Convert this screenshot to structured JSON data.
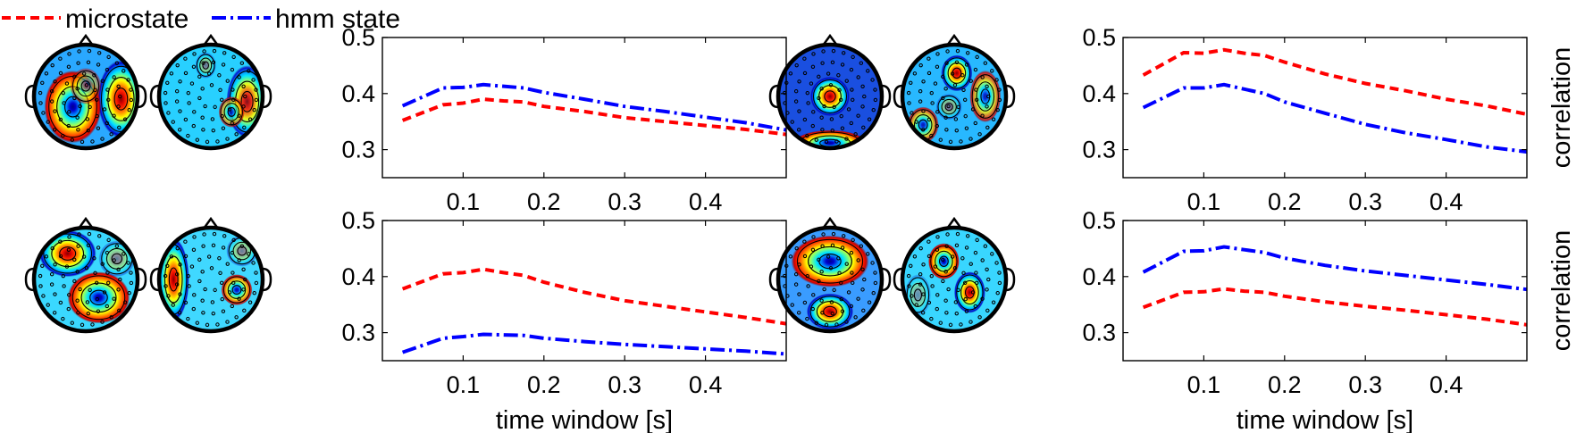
{
  "legend": {
    "entries": [
      {
        "label": "microstate",
        "color": "#ff0000",
        "dash": "10,6"
      },
      {
        "label": "hmm state",
        "color": "#0000ff",
        "dash": "16,5,3,5"
      }
    ]
  },
  "chart_data": [
    {
      "type": "line",
      "title": "",
      "xlabel": "",
      "ylabel": "",
      "xlim": [
        0.0,
        0.5
      ],
      "ylim": [
        0.25,
        0.5
      ],
      "xticks": [
        "0.1",
        "0.2",
        "0.3",
        "0.4"
      ],
      "yticks": [
        "0.3",
        "0.4",
        "0.5"
      ],
      "x": [
        0.025,
        0.075,
        0.1,
        0.125,
        0.15,
        0.175,
        0.2,
        0.25,
        0.3,
        0.35,
        0.4,
        0.45,
        0.5
      ],
      "series": [
        {
          "name": "microstate",
          "color": "#ff0000",
          "values": [
            0.352,
            0.38,
            0.383,
            0.39,
            0.387,
            0.385,
            0.377,
            0.368,
            0.357,
            0.35,
            0.343,
            0.336,
            0.327
          ]
        },
        {
          "name": "hmm state",
          "color": "#0000ff",
          "values": [
            0.378,
            0.41,
            0.411,
            0.416,
            0.413,
            0.41,
            0.402,
            0.39,
            0.377,
            0.368,
            0.358,
            0.348,
            0.335
          ]
        }
      ]
    },
    {
      "type": "line",
      "title": "",
      "xlabel": "",
      "ylabel": "correlation",
      "xlim": [
        0.0,
        0.5
      ],
      "ylim": [
        0.25,
        0.5
      ],
      "xticks": [
        "0.1",
        "0.2",
        "0.3",
        "0.4"
      ],
      "yticks": [
        "0.3",
        "0.4",
        "0.5"
      ],
      "x": [
        0.025,
        0.075,
        0.1,
        0.125,
        0.15,
        0.175,
        0.2,
        0.25,
        0.3,
        0.35,
        0.4,
        0.45,
        0.5
      ],
      "series": [
        {
          "name": "microstate",
          "color": "#ff0000",
          "values": [
            0.433,
            0.473,
            0.472,
            0.478,
            0.472,
            0.468,
            0.456,
            0.435,
            0.418,
            0.405,
            0.39,
            0.378,
            0.363
          ]
        },
        {
          "name": "hmm state",
          "color": "#0000ff",
          "values": [
            0.375,
            0.41,
            0.41,
            0.416,
            0.408,
            0.4,
            0.385,
            0.365,
            0.345,
            0.33,
            0.318,
            0.305,
            0.296
          ]
        }
      ]
    },
    {
      "type": "line",
      "title": "",
      "xlabel": "time window [s]",
      "ylabel": "",
      "xlim": [
        0.0,
        0.5
      ],
      "ylim": [
        0.25,
        0.5
      ],
      "xticks": [
        "0.1",
        "0.2",
        "0.3",
        "0.4"
      ],
      "yticks": [
        "0.3",
        "0.4",
        "0.5"
      ],
      "x": [
        0.025,
        0.075,
        0.1,
        0.125,
        0.15,
        0.175,
        0.2,
        0.25,
        0.3,
        0.35,
        0.4,
        0.45,
        0.5
      ],
      "series": [
        {
          "name": "microstate",
          "color": "#ff0000",
          "values": [
            0.378,
            0.405,
            0.407,
            0.413,
            0.407,
            0.402,
            0.39,
            0.372,
            0.357,
            0.347,
            0.337,
            0.327,
            0.316
          ]
        },
        {
          "name": "hmm state",
          "color": "#0000ff",
          "values": [
            0.265,
            0.29,
            0.293,
            0.297,
            0.296,
            0.295,
            0.29,
            0.284,
            0.279,
            0.275,
            0.271,
            0.267,
            0.262
          ]
        }
      ]
    },
    {
      "type": "line",
      "title": "",
      "xlabel": "time window [s]",
      "ylabel": "correlation",
      "xlim": [
        0.0,
        0.5
      ],
      "ylim": [
        0.25,
        0.5
      ],
      "xticks": [
        "0.1",
        "0.2",
        "0.3",
        "0.4"
      ],
      "yticks": [
        "0.3",
        "0.4",
        "0.5"
      ],
      "x": [
        0.025,
        0.075,
        0.1,
        0.125,
        0.15,
        0.175,
        0.2,
        0.25,
        0.3,
        0.35,
        0.4,
        0.45,
        0.5
      ],
      "series": [
        {
          "name": "microstate",
          "color": "#ff0000",
          "values": [
            0.345,
            0.372,
            0.373,
            0.378,
            0.374,
            0.372,
            0.365,
            0.355,
            0.347,
            0.34,
            0.332,
            0.324,
            0.314
          ]
        },
        {
          "name": "hmm state",
          "color": "#0000ff",
          "values": [
            0.408,
            0.445,
            0.446,
            0.453,
            0.448,
            0.443,
            0.433,
            0.42,
            0.41,
            0.402,
            0.394,
            0.386,
            0.377
          ]
        }
      ]
    }
  ],
  "topomaps": [
    {
      "name": "topomap-row1-a",
      "blobs": [
        {
          "v": 0.9
        },
        {
          "v": -0.9
        },
        {
          "v": -0.4
        }
      ]
    },
    {
      "name": "topomap-row1-b",
      "blobs": [
        {
          "v": 0.8
        },
        {
          "v": -0.6
        },
        {
          "v": 0.3
        }
      ]
    },
    {
      "name": "topomap-row1-c",
      "blobs": [
        {
          "v": 1.0
        },
        {
          "v": -0.9
        }
      ]
    },
    {
      "name": "topomap-row1-d",
      "blobs": [
        {
          "v": 1.0
        },
        {
          "v": -0.7
        },
        {
          "v": -0.7
        },
        {
          "v": 0.3
        }
      ]
    },
    {
      "name": "topomap-row2-a",
      "blobs": [
        {
          "v": 0.9
        },
        {
          "v": -0.9
        },
        {
          "v": 0.3
        }
      ]
    },
    {
      "name": "topomap-row2-b",
      "blobs": [
        {
          "v": 1.0
        },
        {
          "v": -0.8
        },
        {
          "v": 0.3
        }
      ]
    },
    {
      "name": "topomap-row2-c",
      "blobs": [
        {
          "v": -1.0
        },
        {
          "v": 1.0
        }
      ]
    },
    {
      "name": "topomap-row2-d",
      "blobs": [
        {
          "v": 1.0
        },
        {
          "v": -0.9
        },
        {
          "v": 0.2
        }
      ]
    }
  ]
}
